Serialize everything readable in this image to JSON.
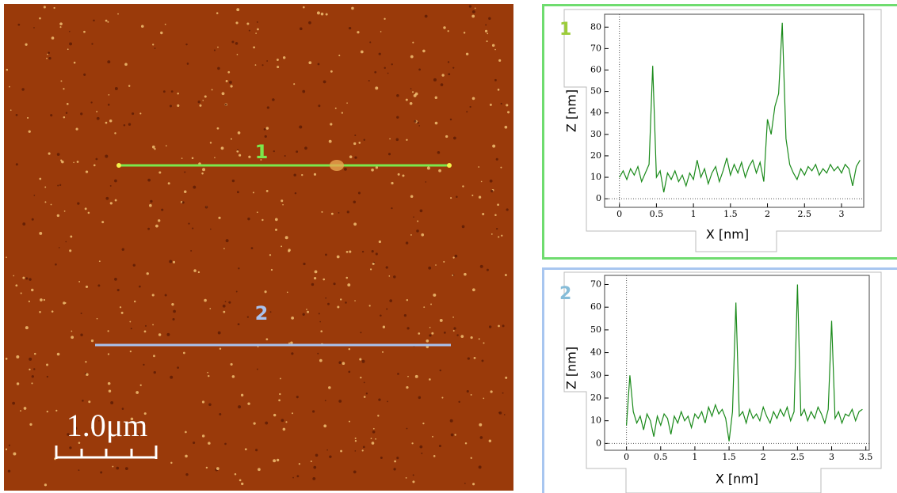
{
  "image": {
    "scale_bar": "1.0μm",
    "profiles": [
      {
        "label": "1",
        "color": "#7be84c"
      },
      {
        "label": "2",
        "color": "#a9c2ee"
      }
    ]
  },
  "chart_data": [
    {
      "type": "line",
      "title": "1",
      "title_color": "#9ccc3a",
      "border_color": "#6fdc6f",
      "xlabel": "X [nm]",
      "ylabel": "Z [nm]",
      "color": "#1a8a1a",
      "x": [
        0,
        0.05,
        0.1,
        0.15,
        0.2,
        0.25,
        0.3,
        0.35,
        0.4,
        0.45,
        0.5,
        0.55,
        0.6,
        0.65,
        0.7,
        0.75,
        0.8,
        0.85,
        0.9,
        0.95,
        1,
        1.05,
        1.1,
        1.15,
        1.2,
        1.25,
        1.3,
        1.35,
        1.4,
        1.45,
        1.5,
        1.55,
        1.6,
        1.65,
        1.7,
        1.75,
        1.8,
        1.85,
        1.9,
        1.95,
        2,
        2.05,
        2.1,
        2.15,
        2.2,
        2.25,
        2.3,
        2.35,
        2.4,
        2.45,
        2.5,
        2.55,
        2.6,
        2.65,
        2.7,
        2.75,
        2.8,
        2.85,
        2.9,
        2.95,
        3,
        3.05,
        3.1,
        3.15,
        3.2,
        3.25
      ],
      "values": [
        10,
        13,
        9,
        14,
        11,
        15,
        8,
        12,
        16,
        62,
        10,
        13,
        3,
        12,
        9,
        13,
        8,
        11,
        6,
        12,
        9,
        18,
        10,
        14,
        7,
        12,
        15,
        8,
        13,
        19,
        11,
        16,
        12,
        17,
        10,
        15,
        18,
        12,
        17,
        8,
        37,
        30,
        43,
        49,
        82,
        28,
        16,
        12,
        9,
        14,
        11,
        15,
        13,
        16,
        11,
        14,
        12,
        16,
        13,
        15,
        12,
        16,
        14,
        6,
        15,
        18
      ],
      "xlim": [
        -0.2,
        3.3
      ],
      "ylim": [
        -4,
        86
      ],
      "xticks": [
        0,
        0.5,
        1,
        1.5,
        2,
        2.5,
        3
      ],
      "yticks": [
        0,
        10,
        20,
        30,
        40,
        50,
        60,
        70,
        80
      ]
    },
    {
      "type": "line",
      "title": "2",
      "title_color": "#86bcd8",
      "border_color": "#a8c6f0",
      "xlabel": "X [nm]",
      "ylabel": "Z [nm]",
      "color": "#1a8a1a",
      "x": [
        0,
        0.05,
        0.1,
        0.15,
        0.2,
        0.25,
        0.3,
        0.35,
        0.4,
        0.45,
        0.5,
        0.55,
        0.6,
        0.65,
        0.7,
        0.75,
        0.8,
        0.85,
        0.9,
        0.95,
        1,
        1.05,
        1.1,
        1.15,
        1.2,
        1.25,
        1.3,
        1.35,
        1.4,
        1.45,
        1.5,
        1.55,
        1.6,
        1.65,
        1.7,
        1.75,
        1.8,
        1.85,
        1.9,
        1.95,
        2,
        2.05,
        2.1,
        2.15,
        2.2,
        2.25,
        2.3,
        2.35,
        2.4,
        2.45,
        2.5,
        2.55,
        2.6,
        2.65,
        2.7,
        2.75,
        2.8,
        2.85,
        2.9,
        2.95,
        3,
        3.05,
        3.1,
        3.15,
        3.2,
        3.25,
        3.3,
        3.35,
        3.4,
        3.45
      ],
      "values": [
        8,
        30,
        14,
        9,
        12,
        6,
        13,
        10,
        3,
        12,
        8,
        13,
        11,
        4,
        12,
        9,
        14,
        10,
        12,
        7,
        13,
        11,
        14,
        9,
        16,
        12,
        17,
        13,
        15,
        11,
        1,
        14,
        62,
        12,
        14,
        9,
        15,
        11,
        13,
        10,
        16,
        12,
        9,
        14,
        11,
        15,
        12,
        16,
        10,
        14,
        70,
        12,
        15,
        10,
        14,
        11,
        16,
        13,
        9,
        15,
        54,
        11,
        14,
        9,
        13,
        12,
        15,
        10,
        14,
        15
      ],
      "xlim": [
        -0.32,
        3.55
      ],
      "ylim": [
        -3,
        74
      ],
      "xticks": [
        0,
        0.5,
        1,
        1.5,
        2,
        2.5,
        3,
        3.5
      ],
      "yticks": [
        0,
        10,
        20,
        30,
        40,
        50,
        60,
        70
      ]
    }
  ]
}
